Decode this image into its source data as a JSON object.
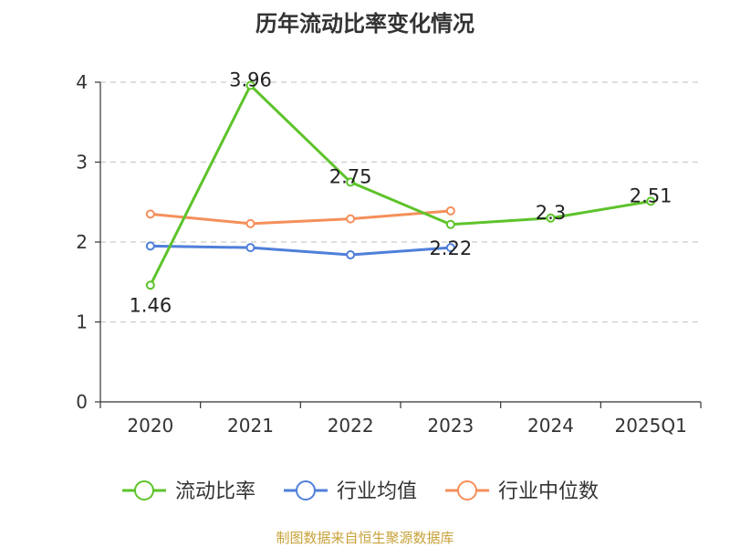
{
  "chart_data": {
    "type": "line",
    "title": "历年流动比率变化情况",
    "categories": [
      "2020",
      "2021",
      "2022",
      "2023",
      "2024",
      "2025Q1"
    ],
    "ylim": [
      0,
      4
    ],
    "yticks": [
      0,
      1,
      2,
      3,
      4
    ],
    "grid": "dashed-horizontal",
    "legend_position": "bottom",
    "series": [
      {
        "name": "流动比率",
        "color": "#5ec32b",
        "values": [
          1.46,
          3.96,
          2.75,
          2.22,
          2.3,
          2.51
        ],
        "labels": [
          "1.46",
          "3.96",
          "2.75",
          "2.22",
          "2.3",
          "2.51"
        ]
      },
      {
        "name": "行业均值",
        "color": "#4f7fda",
        "values": [
          1.95,
          1.93,
          1.84,
          1.93,
          null,
          null
        ]
      },
      {
        "name": "行业中位数",
        "color": "#f58f5a",
        "values": [
          2.35,
          2.23,
          2.29,
          2.39,
          null,
          null
        ]
      }
    ]
  },
  "footer": {
    "text": "制图数据来自恒生聚源数据库",
    "color": "#c8a23a"
  }
}
